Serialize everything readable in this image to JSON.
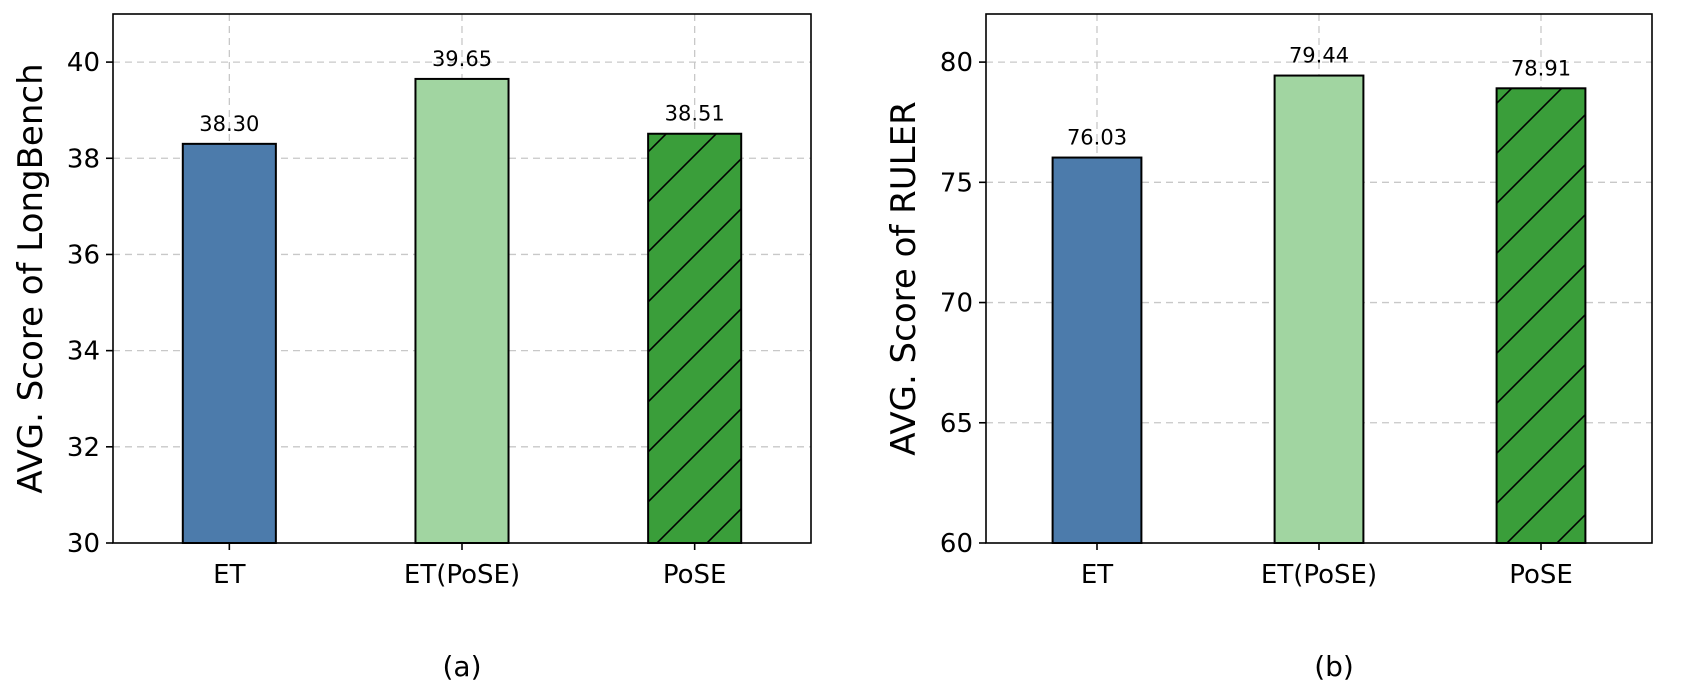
{
  "chart_data": [
    {
      "type": "bar",
      "categories": [
        "ET",
        "ET(PoSE)",
        "PoSE"
      ],
      "values": [
        38.3,
        39.65,
        38.51
      ],
      "value_labels": [
        "38.30",
        "39.65",
        "38.51"
      ],
      "colors": [
        "#4c7bab",
        "#a1d5a1",
        "#3a9e3a"
      ],
      "hatch": [
        false,
        false,
        true
      ],
      "ylabel": "AVG. Score of LongBench",
      "ylim": [
        30,
        41
      ],
      "yticks": [
        30,
        32,
        34,
        36,
        38,
        40
      ],
      "grid": true,
      "caption": "(a)"
    },
    {
      "type": "bar",
      "categories": [
        "ET",
        "ET(PoSE)",
        "PoSE"
      ],
      "values": [
        76.03,
        79.44,
        78.91
      ],
      "value_labels": [
        "76.03",
        "79.44",
        "78.91"
      ],
      "colors": [
        "#4c7bab",
        "#a1d5a1",
        "#3a9e3a"
      ],
      "hatch": [
        false,
        false,
        true
      ],
      "ylabel": "AVG. Score of RULER",
      "ylim": [
        60,
        82
      ],
      "yticks": [
        60,
        65,
        70,
        75,
        80
      ],
      "grid": true,
      "caption": "(b)"
    }
  ]
}
